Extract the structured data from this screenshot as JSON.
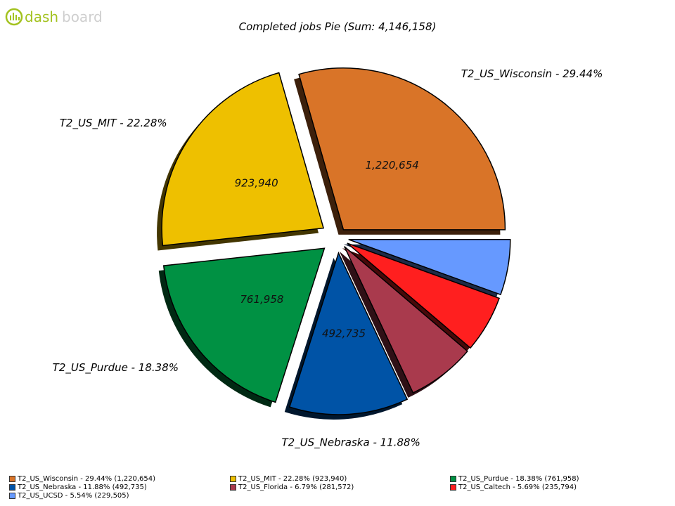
{
  "logo": {
    "text_dash": "dash",
    "text_board": "board",
    "accent_color": "#a3c21f",
    "muted_color": "#cfcfcf"
  },
  "chart_data": {
    "type": "pie",
    "title": "Completed jobs Pie (Sum: 4,146,158)",
    "total": 4146158,
    "slices": [
      {
        "name": "T2_US_Wisconsin",
        "value": 1220654,
        "value_label": "1,220,654",
        "percent": 29.44,
        "color": "#d97428",
        "outer_label": "T2_US_Wisconsin - 29.44%",
        "legend": "T2_US_Wisconsin - 29.44% (1,220,654)"
      },
      {
        "name": "T2_US_MIT",
        "value": 923940,
        "value_label": "923,940",
        "percent": 22.28,
        "color": "#eec000",
        "outer_label": "T2_US_MIT - 22.28%",
        "legend": "T2_US_MIT - 22.28% (923,940)"
      },
      {
        "name": "T2_US_Purdue",
        "value": 761958,
        "value_label": "761,958",
        "percent": 18.38,
        "color": "#009143",
        "outer_label": "T2_US_Purdue - 18.38%",
        "legend": "T2_US_Purdue - 18.38% (761,958)"
      },
      {
        "name": "T2_US_Nebraska",
        "value": 492735,
        "value_label": "492,735",
        "percent": 11.88,
        "color": "#0053a6",
        "outer_label": "T2_US_Nebraska - 11.88%",
        "legend": "T2_US_Nebraska - 11.88% (492,735)"
      },
      {
        "name": "T2_US_Florida",
        "value": 281572,
        "value_label": "",
        "percent": 6.79,
        "color": "#a93a4d",
        "outer_label": "",
        "legend": "T2_US_Florida - 6.79% (281,572)"
      },
      {
        "name": "T2_US_Caltech",
        "value": 235794,
        "value_label": "",
        "percent": 5.69,
        "color": "#ff1f1f",
        "outer_label": "",
        "legend": "T2_US_Caltech - 5.69% (235,794)"
      },
      {
        "name": "T2_US_UCSD",
        "value": 229505,
        "value_label": "",
        "percent": 5.54,
        "color": "#6699ff",
        "outer_label": "",
        "legend": "T2_US_UCSD - 5.54% (229,505)"
      }
    ],
    "legend_position": "bottom",
    "exploded": true,
    "shadow": true
  }
}
